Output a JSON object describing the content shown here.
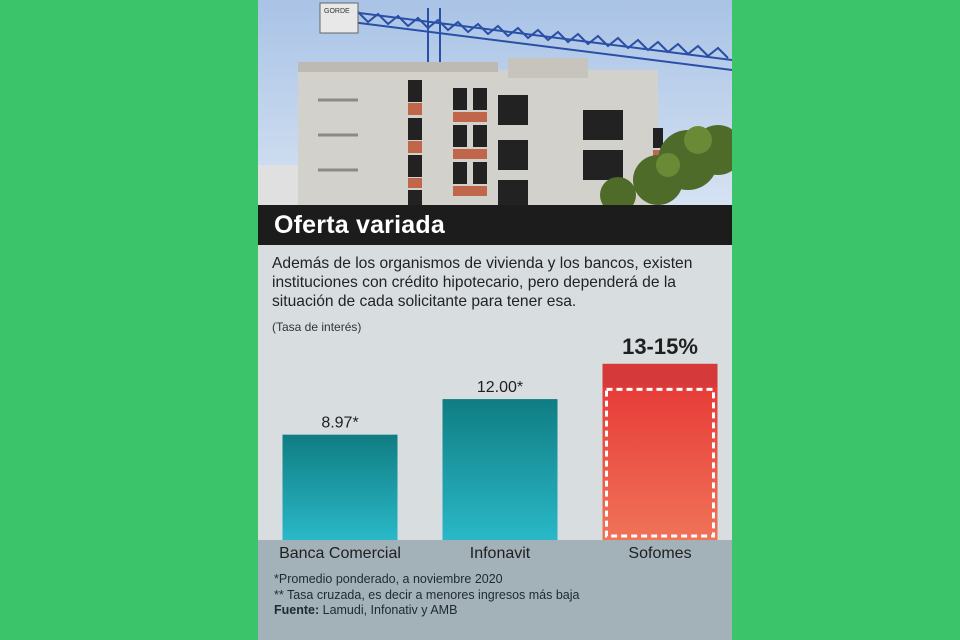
{
  "title": "Oferta variada",
  "description": "Además de los organismos de vivienda y los bancos, existen instituciones con crédito hipotecario, pero dependerá de la situación de cada solicitante para tener esa.",
  "unit_label": "(Tasa de interés)",
  "photo": {
    "sign_text": "GORDE",
    "desc": "building-under-construction"
  },
  "colors": {
    "background": "#3cc46a",
    "teal_top": "#0f7d82",
    "teal_bottom": "#2ab8c8",
    "red_top": "#d93a3a",
    "red_bottom": "#f07a5a",
    "title_bar": "#1c1c1c"
  },
  "chart_data": {
    "type": "bar",
    "categories": [
      "Banca Comercial",
      "Infonavit",
      "Sofomes"
    ],
    "values": [
      8.97,
      12.0,
      15
    ],
    "range_low": [
      null,
      null,
      13
    ],
    "data_labels": [
      "8.97*",
      "12.00*",
      "13-15%"
    ],
    "ylim": [
      0,
      15.5
    ]
  },
  "footnotes": {
    "note1": "*Promedio ponderado, a noviembre 2020",
    "note2": "** Tasa cruzada, es decir a menores ingresos más baja",
    "source_label": "Fuente:",
    "source_text": " Lamudi, Infonativ y AMB"
  }
}
